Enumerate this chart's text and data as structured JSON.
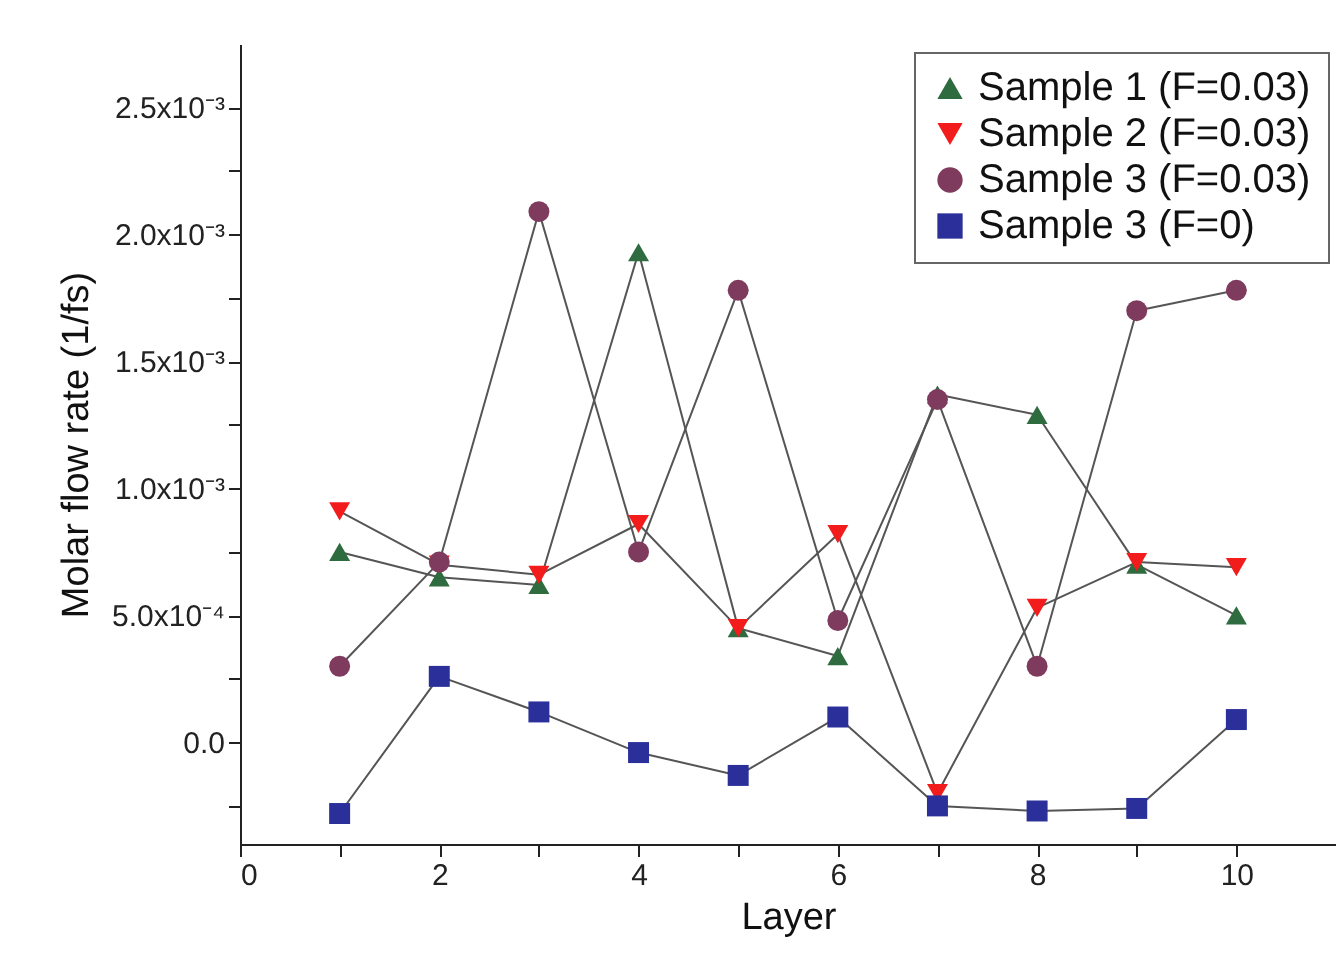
{
  "chart_data": {
    "type": "line",
    "xlabel": "Layer",
    "ylabel": "Molar flow rate (1/fs)",
    "x": [
      1,
      2,
      3,
      4,
      5,
      6,
      7,
      8,
      9,
      10
    ],
    "series": [
      {
        "name": "Sample 1 (F=0.03)",
        "color": "#2e6b3e",
        "marker": "triangle",
        "values": [
          0.00075,
          0.00065,
          0.00062,
          0.00193,
          0.00045,
          0.00034,
          0.00137,
          0.00129,
          0.0007,
          0.0005
        ]
      },
      {
        "name": "Sample 2 (F=0.03)",
        "color": "#f21c1c",
        "marker": "triangle-down",
        "values": [
          0.00091,
          0.0007,
          0.00066,
          0.00086,
          0.00045,
          0.00082,
          -0.0002,
          0.00053,
          0.00071,
          0.00069
        ]
      },
      {
        "name": "Sample 3 (F=0.03)",
        "color": "#7f3b5e",
        "marker": "circle",
        "values": [
          0.0003,
          0.00071,
          0.00209,
          0.00075,
          0.00178,
          0.00048,
          0.00135,
          0.0003,
          0.0017,
          0.00178
        ]
      },
      {
        "name": "Sample 3 (F=0)",
        "color": "#2b2f9a",
        "marker": "square",
        "values": [
          -0.00028,
          0.00026,
          0.00012,
          -4e-05,
          -0.00013,
          0.0001,
          -0.00025,
          -0.00027,
          -0.00026,
          9e-05
        ]
      }
    ],
    "xlim": [
      0,
      11
    ],
    "xticks": [
      0,
      {
        "value": 1,
        "label": null
      },
      2,
      {
        "value": 3,
        "label": null
      },
      4,
      {
        "value": 5,
        "label": null
      },
      6,
      {
        "value": 7,
        "label": null
      },
      8,
      {
        "value": 9,
        "label": null
      },
      10
    ],
    "ylim": [
      -0.0004,
      0.00275
    ],
    "yticks": [
      {
        "value": -0.00025,
        "label": null
      },
      {
        "value": 0,
        "label": "0.0"
      },
      {
        "value": 0.00025,
        "label": null
      },
      {
        "value": 0.0005,
        "label": "5.0x10⁻⁴"
      },
      {
        "value": 0.00075,
        "label": null
      },
      {
        "value": 0.001,
        "label": "1.0x10⁻³"
      },
      {
        "value": 0.00125,
        "label": null
      },
      {
        "value": 0.0015,
        "label": "1.5x10⁻³"
      },
      {
        "value": 0.00175,
        "label": null
      },
      {
        "value": 0.002,
        "label": "2.0x10⁻³"
      },
      {
        "value": 0.00225,
        "label": null
      },
      {
        "value": 0.0025,
        "label": "2.5x10⁻³"
      }
    ],
    "grid": false,
    "legend": "top right",
    "line_style": "solid"
  }
}
